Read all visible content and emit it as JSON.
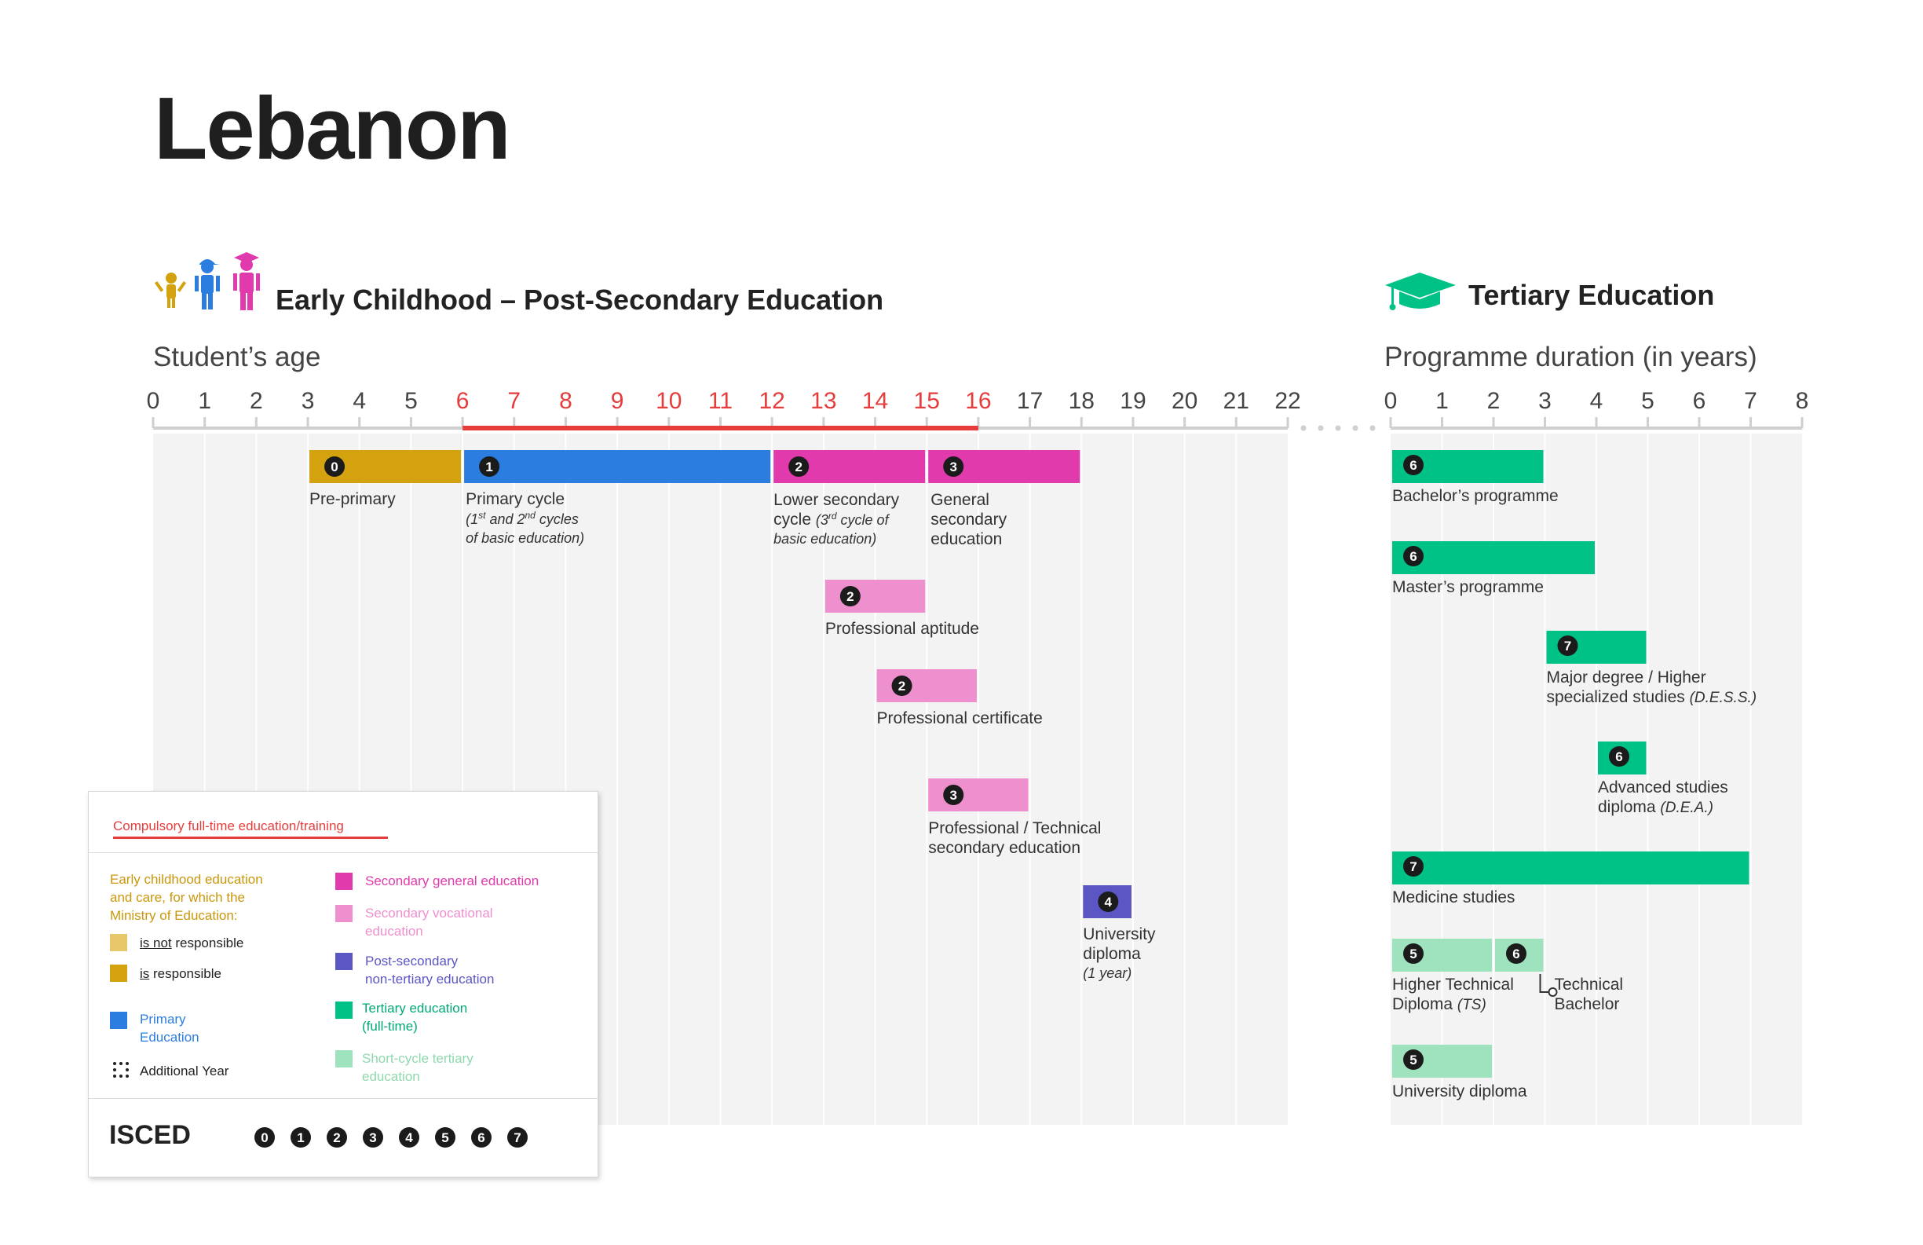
{
  "title": "Lebanon",
  "left_section": {
    "heading": "Early Childhood – Post-Secondary Education",
    "axis_title": "Student’s age"
  },
  "right_section": {
    "heading": "Tertiary Education",
    "axis_title": "Programme duration (in years)"
  },
  "colors": {
    "preprimary": "#d4a20f",
    "primary": "#2b7de0",
    "secondary_general": "#e03aad",
    "secondary_vocational": "#ee8fce",
    "post_secondary": "#5c55c4",
    "tertiary": "#00c186",
    "short_cycle": "#9ee3bd",
    "compulsory": "#e63c3c",
    "ecce_not_responsible": "#e8c76a",
    "ecce_text": "#c9970c"
  },
  "chart_data": {
    "type": "gantt",
    "left_axis": {
      "min": 0,
      "max": 22,
      "ticks": [
        0,
        1,
        2,
        3,
        4,
        5,
        6,
        7,
        8,
        9,
        10,
        11,
        12,
        13,
        14,
        15,
        16,
        17,
        18,
        19,
        20,
        21,
        22
      ],
      "highlighted_ticks": [
        6,
        7,
        8,
        9,
        10,
        11,
        12,
        13,
        14,
        15,
        16
      ],
      "compulsory_range": [
        6,
        16
      ]
    },
    "right_axis": {
      "min": 0,
      "max": 8,
      "ticks": [
        0,
        1,
        2,
        3,
        4,
        5,
        6,
        7,
        8
      ]
    },
    "left_bars": [
      {
        "id": "preprimary",
        "isced": "0",
        "start": 3,
        "end": 6,
        "row": 0,
        "color": "preprimary",
        "label": "Pre-primary"
      },
      {
        "id": "primary",
        "isced": "1",
        "start": 6,
        "end": 12,
        "row": 0,
        "color": "primary",
        "label": "Primary cycle",
        "note": "(1st and 2nd cycles of basic education)"
      },
      {
        "id": "lower-secondary",
        "isced": "2",
        "start": 12,
        "end": 15,
        "row": 0,
        "color": "secondary_general",
        "label": "Lower secondary cycle",
        "note": "(3rd cycle of basic education)"
      },
      {
        "id": "general-secondary",
        "isced": "3",
        "start": 15,
        "end": 18,
        "row": 0,
        "color": "secondary_general",
        "label": "General secondary education"
      },
      {
        "id": "professional-aptitude",
        "isced": "2",
        "start": 13,
        "end": 15,
        "row": 1,
        "color": "secondary_vocational",
        "label": "Professional aptitude"
      },
      {
        "id": "professional-certificate",
        "isced": "2",
        "start": 14,
        "end": 16,
        "row": 2,
        "color": "secondary_vocational",
        "label": "Professional certificate"
      },
      {
        "id": "technical-secondary",
        "isced": "3",
        "start": 15,
        "end": 17,
        "row": 3,
        "color": "secondary_vocational",
        "label": "Professional / Technical secondary education"
      },
      {
        "id": "university-diploma-1y",
        "isced": "4",
        "start": 18,
        "end": 19,
        "row": 4,
        "color": "post_secondary",
        "label": "University diploma",
        "note": "(1 year)"
      }
    ],
    "right_bars": [
      {
        "id": "bachelor",
        "isced": "6",
        "start": 0,
        "end": 3,
        "color": "tertiary",
        "label": "Bachelor’s programme"
      },
      {
        "id": "master",
        "isced": "6",
        "start": 0,
        "end": 4,
        "color": "tertiary",
        "label": "Master’s programme"
      },
      {
        "id": "dess",
        "isced": "7",
        "start": 3,
        "end": 5,
        "color": "tertiary",
        "label": "Major degree / Higher specialized studies",
        "note": "(D.E.S.S.)"
      },
      {
        "id": "dea",
        "isced": "6",
        "start": 4,
        "end": 5,
        "color": "tertiary",
        "label": "Advanced studies diploma",
        "note": "(D.E.A.)"
      },
      {
        "id": "medicine",
        "isced": "7",
        "start": 0,
        "end": 7,
        "color": "tertiary",
        "label": "Medicine studies"
      },
      {
        "id": "hts",
        "isced": "5",
        "start": 0,
        "end": 2,
        "color": "short_cycle",
        "label": "Higher Technical Diploma",
        "note": "(TS)"
      },
      {
        "id": "tech-bachelor",
        "isced": "6",
        "start": 2,
        "end": 3,
        "color": "short_cycle",
        "label": "Technical Bachelor"
      },
      {
        "id": "univ-diploma-sc",
        "isced": "5",
        "start": 0,
        "end": 2,
        "color": "short_cycle",
        "label": "University diploma"
      }
    ]
  },
  "bar_text": {
    "primary_note_1": "(1",
    "primary_note_sup1": "st",
    "primary_note_2": " and 2",
    "primary_note_sup2": "nd",
    "primary_note_3": " cycles",
    "primary_note_4": "of basic education)",
    "lower_sec_1": "Lower secondary",
    "lower_sec_2a": "cycle ",
    "lower_sec_2b": "(3",
    "lower_sec_sup": "rd",
    "lower_sec_2c": " cycle of",
    "lower_sec_3": "basic education)",
    "gen_sec_1": "General",
    "gen_sec_2": "secondary",
    "gen_sec_3": "education",
    "tech_sec_1": "Professional / Technical",
    "tech_sec_2": "secondary education",
    "univ_1": "University",
    "univ_2": "diploma",
    "dess_1": "Major degree / Higher",
    "dess_2": "specialized studies ",
    "dea_1": "Advanced studies",
    "dea_2": "diploma ",
    "hts_1": "Higher Technical",
    "hts_2": "Diploma ",
    "tb_1": "Technical",
    "tb_2": "Bachelor"
  },
  "legend": {
    "compulsory": "Compulsory full-time education/training",
    "ecce_line1": "Early childhood education",
    "ecce_line2": "and care, for which the",
    "ecce_line3": "Ministry of Education:",
    "not_responsible_a": "is not",
    "not_responsible_b": " responsible",
    "responsible_a": "is",
    "responsible_b": " responsible",
    "primary_1": "Primary",
    "primary_2": "Education",
    "additional_year": "Additional Year",
    "sec_general": "Secondary general education",
    "sec_voc_1": "Secondary vocational",
    "sec_voc_2": "education",
    "post_sec_1": "Post-secondary",
    "post_sec_2": "non-tertiary education",
    "tertiary_1": "Tertiary education",
    "tertiary_2": "(full-time)",
    "short_1": "Short-cycle tertiary",
    "short_2": "education",
    "isced_label": "ISCED",
    "isced_levels": [
      "0",
      "1",
      "2",
      "3",
      "4",
      "5",
      "6",
      "7"
    ]
  }
}
